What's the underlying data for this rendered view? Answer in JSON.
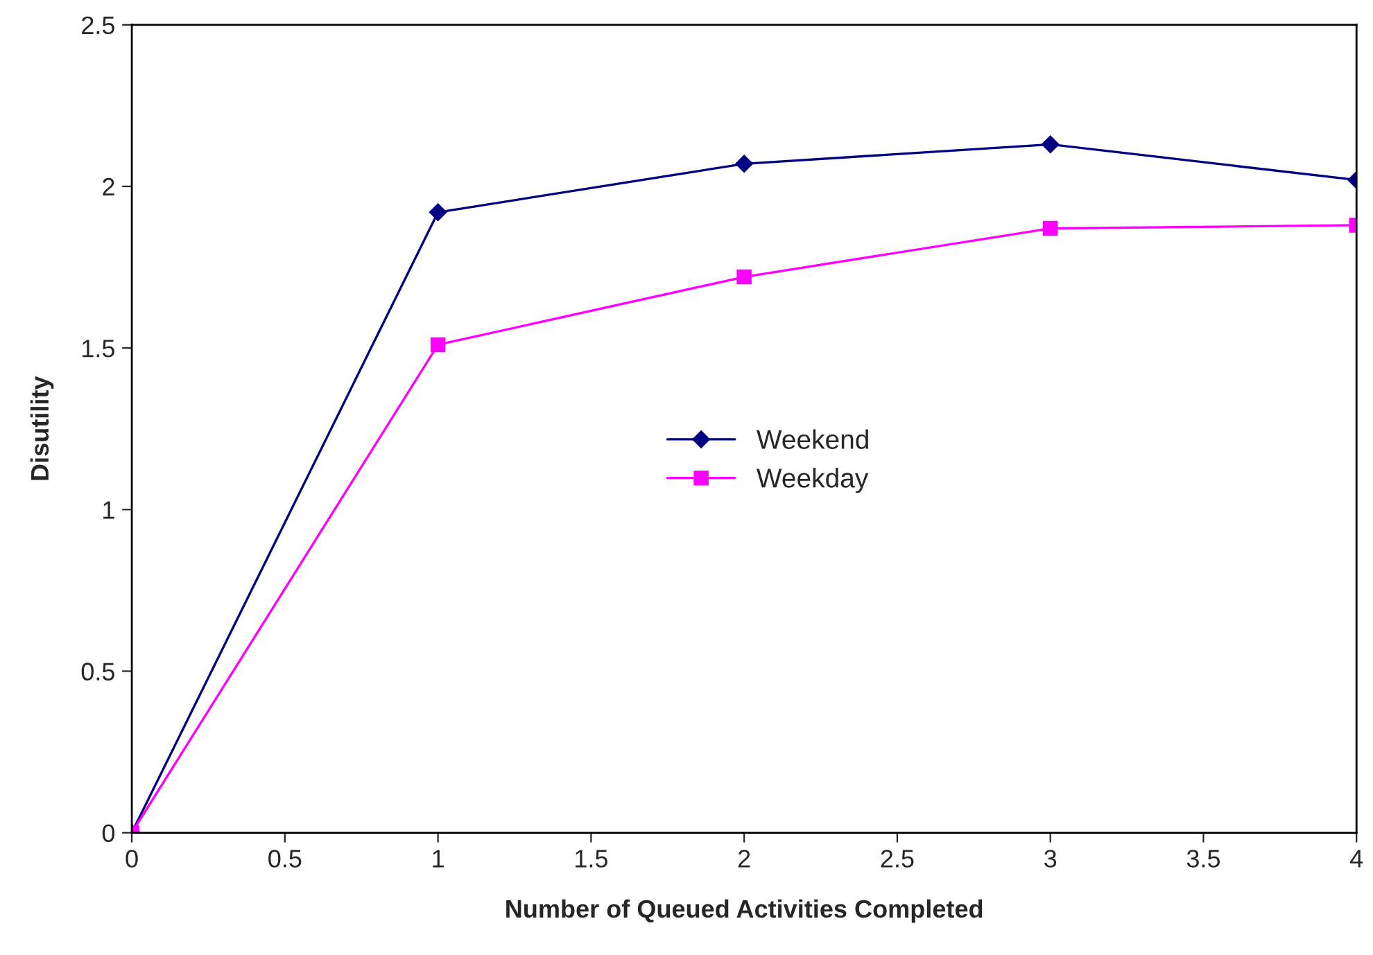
{
  "chart_data": {
    "type": "line",
    "xlabel": "Number of Queued Activities Completed",
    "ylabel": "Disutility",
    "x": [
      0,
      1,
      2,
      3,
      4
    ],
    "series": [
      {
        "name": "Weekend",
        "color": "#000080",
        "marker": "diamond",
        "values": [
          0,
          1.92,
          2.07,
          2.13,
          2.02
        ]
      },
      {
        "name": "Weekday",
        "color": "#ff00ff",
        "marker": "square",
        "values": [
          0,
          1.51,
          1.72,
          1.87,
          1.88
        ]
      }
    ],
    "xlim": [
      0,
      4
    ],
    "xticks": [
      0,
      0.5,
      1,
      1.5,
      2,
      2.5,
      3,
      3.5,
      4
    ],
    "ylim": [
      0,
      2.5
    ],
    "yticks": [
      0,
      0.5,
      1,
      1.5,
      2,
      2.5
    ],
    "grid": false,
    "legend": "center",
    "line_style": "solid"
  }
}
